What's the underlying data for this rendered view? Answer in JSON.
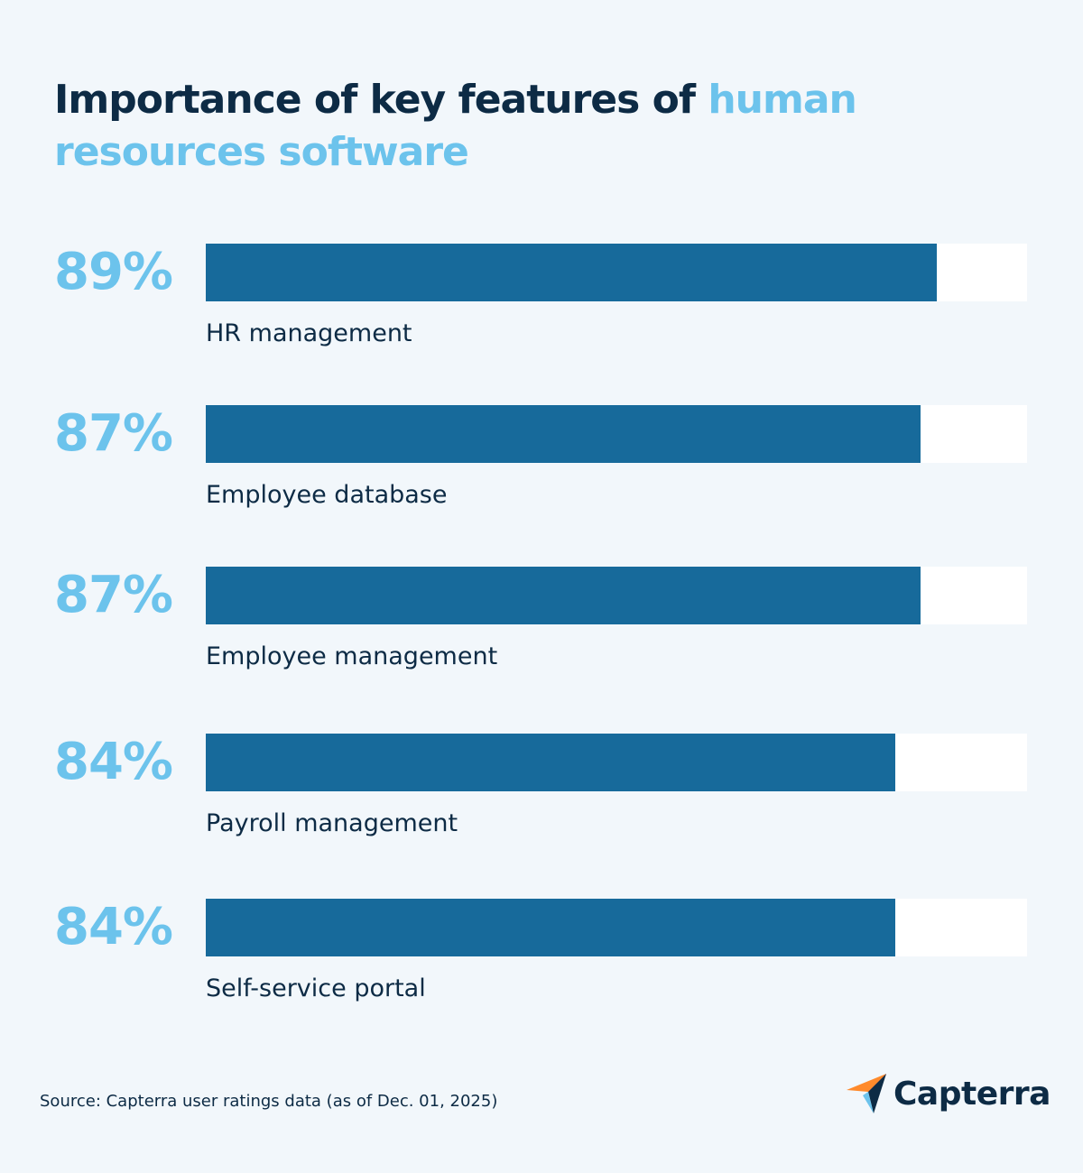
{
  "title": {
    "part1": "Importance of key features of ",
    "part2": "human resources software"
  },
  "chart_data": {
    "type": "bar",
    "orientation": "horizontal",
    "ylim": [
      0,
      100
    ],
    "categories": [
      "HR management",
      "Employee database",
      "Employee management",
      "Payroll management",
      "Self-service portal"
    ],
    "values": [
      89,
      87,
      87,
      84,
      84
    ],
    "value_labels": [
      "89%",
      "87%",
      "87%",
      "84%",
      "84%"
    ]
  },
  "source": "Source: Capterra user ratings data (as of Dec. 01, 2025)",
  "logo": {
    "text": "Capterra"
  },
  "colors": {
    "background": "#f2f7fb",
    "bar_fill": "#176a9b",
    "bar_track": "#ffffff",
    "accent": "#6cc3ec",
    "dark_text": "#0d2b45"
  }
}
